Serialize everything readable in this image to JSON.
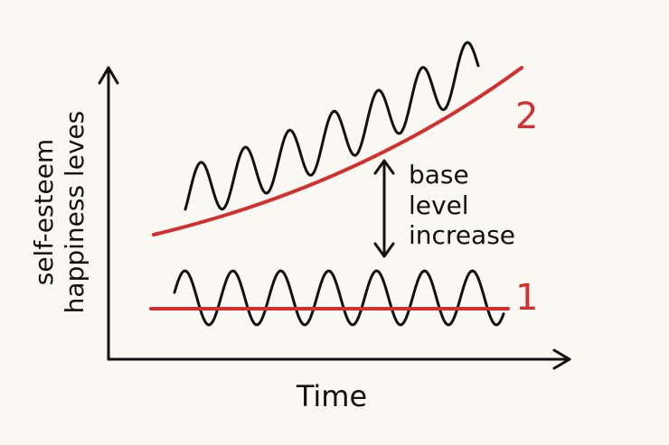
{
  "axes": {
    "y_label_lines": [
      "self-esteem",
      "happiness leves"
    ],
    "x_label": "Time"
  },
  "annotation": {
    "lines": [
      "base",
      "level",
      "increase"
    ]
  },
  "curves": [
    {
      "label": "1"
    },
    {
      "label": "2"
    }
  ]
}
